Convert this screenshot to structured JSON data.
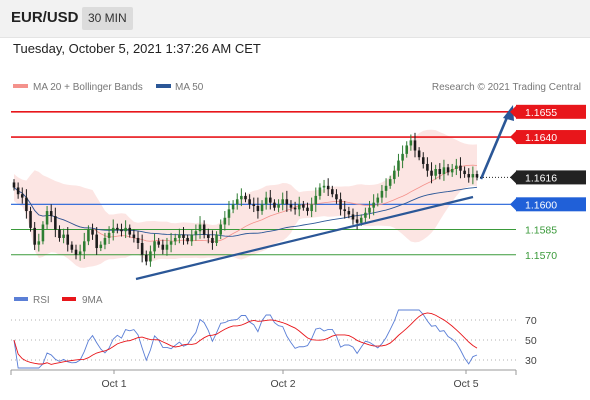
{
  "header": {
    "symbol": "EUR/USD",
    "timeframe": "30 MIN",
    "datetime": "Tuesday, October 5, 2021 1:37:26 AM CET"
  },
  "chart_data": [
    {
      "type": "candlestick",
      "title": "EUR/USD",
      "legend": [
        {
          "name": "MA 20 + Bollinger Bands",
          "color": "#f4928c"
        },
        {
          "name": "MA 50",
          "color": "#2b5797"
        }
      ],
      "credit": "Research © 2021 Trading Central",
      "ylim": [
        1.1555,
        1.1665
      ],
      "x_ticks": [
        "Oct 1",
        "Oct 2",
        "Oct 5"
      ],
      "current_price": "1.1616",
      "levels": [
        {
          "value": 1.1655,
          "label": "1.1655",
          "color": "#e8161b",
          "kind": "resistance"
        },
        {
          "value": 1.164,
          "label": "1.1640",
          "color": "#e8161b",
          "kind": "resistance"
        },
        {
          "value": 1.16,
          "label": "1.1600",
          "color": "#2060d8",
          "kind": "pivot"
        },
        {
          "value": 1.1585,
          "label": "1.1585",
          "color": "#3a9a3a",
          "kind": "support"
        },
        {
          "value": 1.157,
          "label": "1.1570",
          "color": "#3a9a3a",
          "kind": "support"
        }
      ],
      "close": [
        1.161,
        1.1606,
        1.1604,
        1.1596,
        1.1586,
        1.1576,
        1.1578,
        1.1588,
        1.1596,
        1.1593,
        1.1585,
        1.158,
        1.1582,
        1.1576,
        1.1573,
        1.157,
        1.1572,
        1.1578,
        1.1585,
        1.1582,
        1.1574,
        1.1576,
        1.158,
        1.1583,
        1.1586,
        1.1585,
        1.1584,
        1.1586,
        1.1582,
        1.158,
        1.1577,
        1.157,
        1.1566,
        1.1572,
        1.1578,
        1.1576,
        1.1573,
        1.1576,
        1.1578,
        1.158,
        1.1582,
        1.158,
        1.1578,
        1.1582,
        1.1584,
        1.1588,
        1.1582,
        1.158,
        1.1577,
        1.1582,
        1.1588,
        1.1592,
        1.1597,
        1.16,
        1.1603,
        1.1605,
        1.1603,
        1.16,
        1.1599,
        1.1596,
        1.16,
        1.1604,
        1.1601,
        1.1598,
        1.16,
        1.1603,
        1.16,
        1.1598,
        1.1597,
        1.16,
        1.1598,
        1.1596,
        1.16,
        1.1605,
        1.161,
        1.1611,
        1.1609,
        1.1606,
        1.1603,
        1.1597,
        1.1596,
        1.1594,
        1.1591,
        1.1589,
        1.1592,
        1.1595,
        1.1598,
        1.1601,
        1.1604,
        1.1608,
        1.1611,
        1.1615,
        1.162,
        1.1626,
        1.163,
        1.1635,
        1.1638,
        1.1632,
        1.1628,
        1.1624,
        1.162,
        1.1617,
        1.1621,
        1.1618,
        1.1622,
        1.1619,
        1.1621,
        1.1623,
        1.162,
        1.1618,
        1.1616,
        1.1618,
        1.1616
      ]
    },
    {
      "type": "line",
      "title": "RSI",
      "series": [
        {
          "name": "RSI",
          "color": "#5b7fd6"
        },
        {
          "name": "9MA",
          "color": "#e8161b"
        }
      ],
      "ylim": [
        20,
        80
      ],
      "y_ticks": [
        70,
        50,
        30
      ]
    }
  ]
}
